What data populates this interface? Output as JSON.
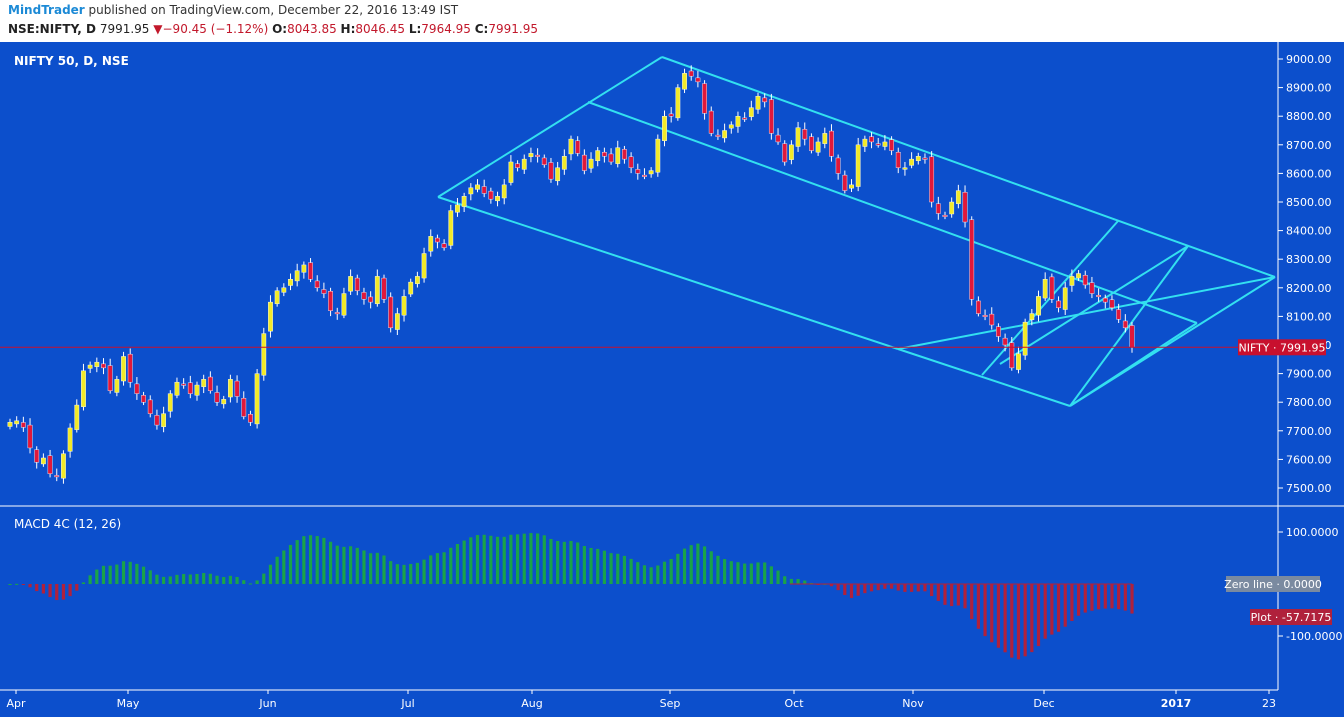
{
  "header": {
    "author": "MindTrader",
    "published_text": "published on TradingView.com, December 22, 2016 13:49 IST",
    "symbol": "NSE:NIFTY, D",
    "last": "7991.95",
    "change_arrow": "▼",
    "change": "−90.45 (−1.12%)",
    "open_label": "O:",
    "open": "8043.85",
    "high_label": "H:",
    "high": "8046.45",
    "low_label": "L:",
    "low": "7964.95",
    "close_label": "C:",
    "close": "7991.95"
  },
  "colors": {
    "background": "#0c4fcc",
    "up_candle": "#f2ea29",
    "down_candle": "#e0183b",
    "channel": "#33e0f0",
    "macd_positive": "#1aa348",
    "macd_negative": "#b0213c",
    "price_line": "#c8102e"
  },
  "chart_data": [
    {
      "type": "candlestick",
      "title": "NIFTY 50, D, NSE",
      "ylim": [
        7380,
        9060
      ],
      "y_ticks": [
        "9000.00",
        "8900.00",
        "8800.00",
        "8700.00",
        "8600.00",
        "8500.00",
        "8400.00",
        "8300.00",
        "8200.00",
        "8100.00",
        "8000.00",
        "7900.00",
        "7800.00",
        "7700.00",
        "7600.00",
        "7500.00"
      ],
      "x_labels": [
        "Apr",
        "May",
        "Jun",
        "Jul",
        "Aug",
        "Sep",
        "Oct",
        "Nov",
        "Dec",
        "2017",
        "23"
      ],
      "last_price_label": "NIFTY · 7991.95",
      "closes": [
        7730,
        7735,
        7712,
        7640,
        7590,
        7605,
        7550,
        7540,
        7620,
        7710,
        7790,
        7910,
        7930,
        7940,
        7920,
        7840,
        7880,
        7960,
        7870,
        7830,
        7800,
        7760,
        7720,
        7760,
        7830,
        7870,
        7860,
        7830,
        7860,
        7880,
        7840,
        7800,
        7810,
        7880,
        7820,
        7750,
        7730,
        7900,
        8040,
        8150,
        8190,
        8200,
        8230,
        8260,
        8280,
        8230,
        8200,
        8180,
        8120,
        8110,
        8180,
        8240,
        8190,
        8160,
        8150,
        8240,
        8160,
        8060,
        8110,
        8170,
        8220,
        8240,
        8320,
        8380,
        8360,
        8340,
        8470,
        8490,
        8520,
        8550,
        8560,
        8530,
        8510,
        8520,
        8560,
        8640,
        8620,
        8650,
        8670,
        8660,
        8630,
        8580,
        8620,
        8660,
        8720,
        8670,
        8610,
        8650,
        8680,
        8660,
        8640,
        8690,
        8650,
        8620,
        8600,
        8590,
        8610,
        8720,
        8800,
        8800,
        8900,
        8950,
        8940,
        8920,
        8810,
        8740,
        8730,
        8750,
        8770,
        8800,
        8790,
        8830,
        8870,
        8850,
        8740,
        8710,
        8640,
        8700,
        8760,
        8720,
        8680,
        8710,
        8740,
        8660,
        8600,
        8540,
        8560,
        8700,
        8720,
        8710,
        8700,
        8710,
        8680,
        8620,
        8620,
        8650,
        8660,
        8650,
        8500,
        8460,
        8450,
        8500,
        8540,
        8430,
        8160,
        8110,
        8100,
        8070,
        8030,
        8000,
        7920,
        7970,
        8080,
        8110,
        8170,
        8230,
        8160,
        8130,
        8200,
        8240,
        8250,
        8210,
        8180,
        8170,
        8150,
        8130,
        8090,
        8060,
        7991.95
      ]
    },
    {
      "type": "bar",
      "title": "MACD 4C (12, 26)",
      "ylim": [
        -190,
        155
      ],
      "y_ticks": [
        "100.0000",
        "-100.0000"
      ],
      "zero_label": "Zero line · 0.0000",
      "plot_label": "Plot · -57.7175"
    }
  ]
}
